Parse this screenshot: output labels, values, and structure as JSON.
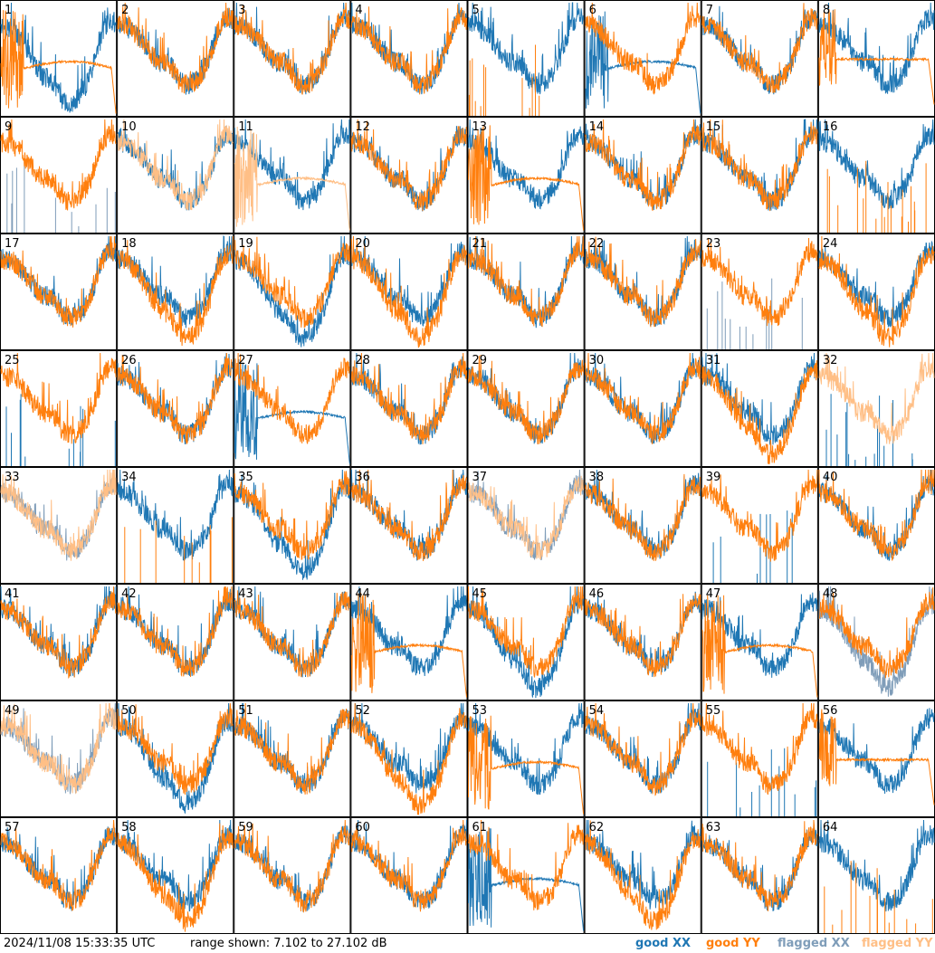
{
  "timestamp": "2024/11/08 15:33:35 UTC",
  "range_text": "range shown: 7.102 to 27.102 dB",
  "legend": {
    "good_xx": "good XX",
    "good_yy": "good YY",
    "flagged_xx": "flagged XX",
    "flagged_yy": "flagged YY"
  },
  "colors": {
    "good_xx": "#1f77b4",
    "good_yy": "#ff7f0e",
    "flagged_xx": "#7f9db9",
    "flagged_yy": "#ffbf86"
  },
  "chart_data": {
    "type": "line",
    "grid": "8x8 small multiples",
    "ylim": [
      7.102,
      27.102
    ],
    "yunit": "dB",
    "tiles": [
      {
        "id": "1",
        "xx": "dip",
        "yy": "dead"
      },
      {
        "id": "2",
        "xx": "normal",
        "yy": "normal"
      },
      {
        "id": "3",
        "xx": "normal",
        "yy": "normal"
      },
      {
        "id": "4",
        "xx": "normal",
        "yy": "normal"
      },
      {
        "id": "5",
        "xx": "normal",
        "yy": "spikes"
      },
      {
        "id": "6",
        "xx": "dead",
        "yy": "normal"
      },
      {
        "id": "7",
        "xx": "normal",
        "yy": "normal"
      },
      {
        "id": "8",
        "xx": "normal",
        "yy": "flat"
      },
      {
        "id": "9",
        "xx": "flagged-spikes",
        "yy": "normal"
      },
      {
        "id": "10",
        "xx": "normal",
        "yy": "flagged-normal"
      },
      {
        "id": "11",
        "xx": "normal",
        "yy": "flagged-dead"
      },
      {
        "id": "12",
        "xx": "normal",
        "yy": "normal"
      },
      {
        "id": "13",
        "xx": "normal",
        "yy": "dead"
      },
      {
        "id": "14",
        "xx": "normal",
        "yy": "normal"
      },
      {
        "id": "15",
        "xx": "normal",
        "yy": "normal"
      },
      {
        "id": "16",
        "xx": "normal",
        "yy": "spikes"
      },
      {
        "id": "17",
        "xx": "normal",
        "yy": "normal"
      },
      {
        "id": "18",
        "xx": "normal",
        "yy": "dip"
      },
      {
        "id": "19",
        "xx": "dip",
        "yy": "normal"
      },
      {
        "id": "20",
        "xx": "normal",
        "yy": "dip"
      },
      {
        "id": "21",
        "xx": "normal",
        "yy": "normal"
      },
      {
        "id": "22",
        "xx": "normal",
        "yy": "normal"
      },
      {
        "id": "23",
        "xx": "flagged-spikes",
        "yy": "normal"
      },
      {
        "id": "24",
        "xx": "normal",
        "yy": "dip"
      },
      {
        "id": "25",
        "xx": "spikes",
        "yy": "normal"
      },
      {
        "id": "26",
        "xx": "normal",
        "yy": "normal"
      },
      {
        "id": "27",
        "xx": "dead",
        "yy": "normal"
      },
      {
        "id": "28",
        "xx": "normal",
        "yy": "normal"
      },
      {
        "id": "29",
        "xx": "normal",
        "yy": "normal"
      },
      {
        "id": "30",
        "xx": "normal",
        "yy": "normal"
      },
      {
        "id": "31",
        "xx": "normal",
        "yy": "dip"
      },
      {
        "id": "32",
        "xx": "spikes",
        "yy": "flagged-normal"
      },
      {
        "id": "33",
        "xx": "flagged-normal",
        "yy": "flagged-normal"
      },
      {
        "id": "34",
        "xx": "normal",
        "yy": "spikes"
      },
      {
        "id": "35",
        "xx": "dip",
        "yy": "normal"
      },
      {
        "id": "36",
        "xx": "normal",
        "yy": "normal"
      },
      {
        "id": "37",
        "xx": "flagged-normal",
        "yy": "flagged-normal"
      },
      {
        "id": "38",
        "xx": "normal",
        "yy": "normal"
      },
      {
        "id": "39",
        "xx": "spikes",
        "yy": "normal"
      },
      {
        "id": "40",
        "xx": "normal",
        "yy": "normal"
      },
      {
        "id": "41",
        "xx": "normal",
        "yy": "normal"
      },
      {
        "id": "42",
        "xx": "normal",
        "yy": "normal"
      },
      {
        "id": "43",
        "xx": "normal",
        "yy": "normal"
      },
      {
        "id": "44",
        "xx": "normal",
        "yy": "dead"
      },
      {
        "id": "45",
        "xx": "dip",
        "yy": "normal"
      },
      {
        "id": "46",
        "xx": "normal",
        "yy": "normal"
      },
      {
        "id": "47",
        "xx": "normal",
        "yy": "dead"
      },
      {
        "id": "48",
        "xx": "flagged-dip",
        "yy": "normal"
      },
      {
        "id": "49",
        "xx": "flagged-normal",
        "yy": "flagged-normal"
      },
      {
        "id": "50",
        "xx": "dip",
        "yy": "normal"
      },
      {
        "id": "51",
        "xx": "normal",
        "yy": "normal"
      },
      {
        "id": "52",
        "xx": "normal",
        "yy": "dip"
      },
      {
        "id": "53",
        "xx": "normal",
        "yy": "dead"
      },
      {
        "id": "54",
        "xx": "normal",
        "yy": "normal"
      },
      {
        "id": "55",
        "xx": "spikes",
        "yy": "normal"
      },
      {
        "id": "56",
        "xx": "normal",
        "yy": "flat"
      },
      {
        "id": "57",
        "xx": "normal",
        "yy": "normal"
      },
      {
        "id": "58",
        "xx": "normal",
        "yy": "dip"
      },
      {
        "id": "59",
        "xx": "normal",
        "yy": "normal"
      },
      {
        "id": "60",
        "xx": "normal",
        "yy": "normal"
      },
      {
        "id": "61",
        "xx": "dead",
        "yy": "normal"
      },
      {
        "id": "62",
        "xx": "normal",
        "yy": "dip"
      },
      {
        "id": "63",
        "xx": "normal",
        "yy": "normal"
      },
      {
        "id": "64",
        "xx": "normal",
        "yy": "spikes"
      }
    ]
  }
}
